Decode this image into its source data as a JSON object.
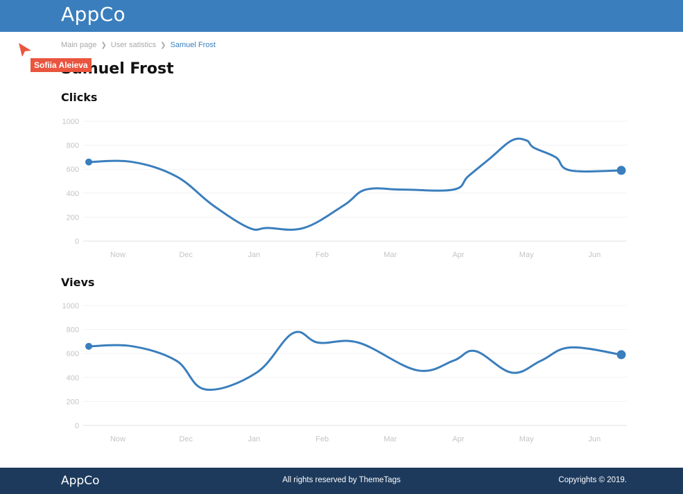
{
  "header": {
    "brand": "AppCo"
  },
  "breadcrumb": {
    "items": [
      {
        "label": "Main page"
      },
      {
        "label": "User satistics"
      },
      {
        "label": "Samuel Frost"
      }
    ]
  },
  "page": {
    "title": "Samuel Frost"
  },
  "cursor": {
    "user_label": "Sofiia Aleieva"
  },
  "colors": {
    "accent": "#3a7ebd",
    "footer": "#1d3a5c",
    "cursor_tag": "#e9553f"
  },
  "chart_data": [
    {
      "type": "line",
      "title": "Clicks",
      "categories": [
        "Now",
        "Dec",
        "Jan",
        "Feb",
        "Mar",
        "Apr",
        "May",
        "Jun"
      ],
      "x": [
        0,
        0.6,
        1.2,
        1.7,
        2.2,
        2.45,
        2.95,
        3.5,
        3.8,
        4.3,
        5.0,
        5.2,
        5.5,
        5.8,
        6.0,
        6.1,
        6.4,
        6.6,
        7.3
      ],
      "y": [
        660,
        660,
        540,
        300,
        110,
        110,
        110,
        300,
        430,
        430,
        430,
        540,
        690,
        840,
        840,
        780,
        700,
        590,
        590
      ],
      "yticks": [
        0,
        200,
        400,
        600,
        800,
        1000
      ],
      "ylim": [
        0,
        1000
      ],
      "grid": true,
      "series_color": "#3a7ebd"
    },
    {
      "type": "line",
      "title": "Vievs",
      "categories": [
        "Now",
        "Dec",
        "Jan",
        "Feb",
        "Mar",
        "Apr",
        "May",
        "Jun"
      ],
      "x": [
        0,
        0.6,
        1.2,
        1.6,
        2.3,
        2.8,
        3.15,
        3.7,
        4.5,
        5.0,
        5.3,
        5.8,
        6.2,
        6.6,
        7.3
      ],
      "y": [
        660,
        660,
        540,
        300,
        440,
        770,
        690,
        690,
        460,
        540,
        620,
        440,
        540,
        650,
        590
      ],
      "yticks": [
        0,
        200,
        400,
        600,
        800,
        1000
      ],
      "ylim": [
        0,
        1000
      ],
      "grid": true,
      "series_color": "#3a7ebd"
    }
  ],
  "footer": {
    "brand": "AppCo",
    "rights": "All rights reserved by ThemeTags",
    "copyright": "Copyrights © 2019."
  }
}
